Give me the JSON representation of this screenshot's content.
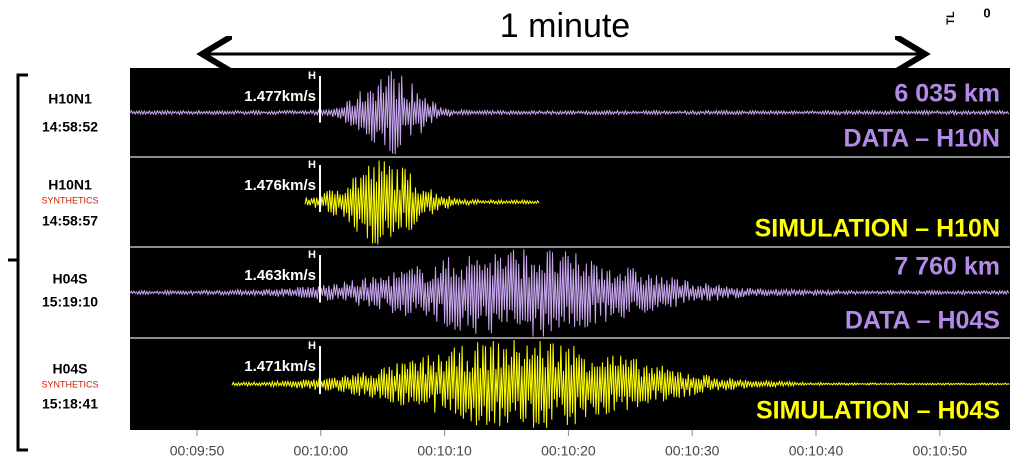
{
  "header": {
    "title": "1 minute",
    "corner_labels": [
      "TL",
      "0"
    ]
  },
  "traces": [
    {
      "station": "H10N1",
      "time": "14:58:52",
      "velocity": "1.477km/s",
      "marker": "H",
      "label": "DATA – H10N",
      "distance": "6 035 km"
    },
    {
      "station": "H10N1",
      "tag": "SYNTHETICS",
      "time": "14:58:57",
      "velocity": "1.476km/s",
      "marker": "H",
      "label": "SIMULATION – H10N"
    },
    {
      "station": "H04S",
      "time": "15:19:10",
      "velocity": "1.463km/s",
      "marker": "H",
      "label": "DATA – H04S",
      "distance": "7 760 km"
    },
    {
      "station": "H04S",
      "tag": "SYNTHETICS",
      "time": "15:18:41",
      "velocity": "1.471km/s",
      "marker": "H",
      "label": "SIMULATION – H04S"
    }
  ],
  "time_axis": [
    "00:09:50",
    "00:10:00",
    "00:10:10",
    "00:10:20",
    "00:10:30",
    "00:10:40",
    "00:10:50"
  ]
}
